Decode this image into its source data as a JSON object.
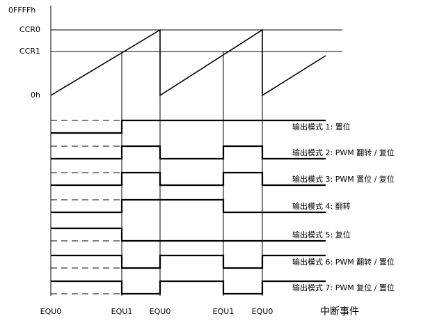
{
  "axis_labels": [
    "0FFFFh",
    "CCR0",
    "CCR1",
    "0h"
  ],
  "modes": [
    "输出模式 1: 置位",
    "输出模式 2: PWM 翻转 / 复位",
    "输出模式 3: PWM 置位 / 复位",
    "输出模式 4: 翻转",
    "输出模式 5: 复位",
    "输出模式 6: PWM 翻转 / 置位",
    "输出模式 7: PWM 复位 / 置位"
  ],
  "events": [
    "EQU0",
    "EQU1",
    "EQU0",
    "EQU1",
    "EQU0"
  ],
  "events_title": "中断事件"
}
